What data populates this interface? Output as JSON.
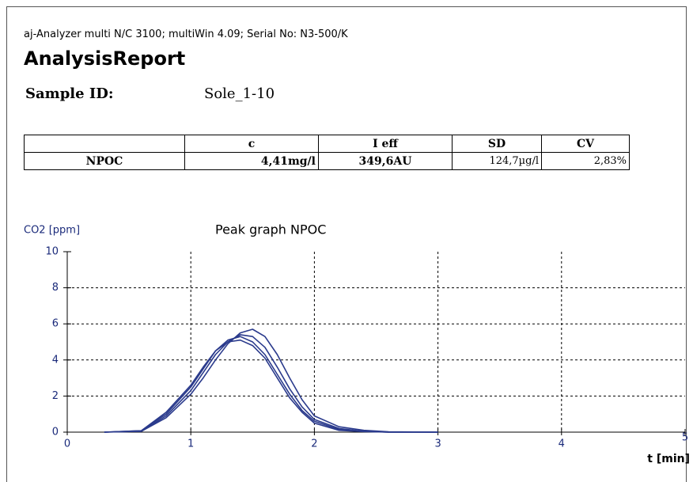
{
  "header": {
    "instrument": "aj-Analyzer multi N/C 3100; multiWin 4.09; Serial No: N3-500/K",
    "title": "AnalysisReport",
    "sample_label": "Sample ID:",
    "sample_value": "Sole_1-10"
  },
  "table": {
    "header": [
      "",
      "c",
      "I eff",
      "SD",
      "CV"
    ],
    "rows": [
      [
        "NPOC",
        "4,41mg/l",
        "349,6AU",
        "124,7µg/l",
        "2,83%"
      ]
    ]
  },
  "chart_data": {
    "type": "line",
    "title": "Peak graph NPOC",
    "ylabel": "CO2 [ppm]",
    "xlabel": "t [min]",
    "x": [
      0.3,
      0.6,
      0.8,
      1.0,
      1.1,
      1.2,
      1.3,
      1.4,
      1.5,
      1.6,
      1.7,
      1.8,
      1.9,
      2.0,
      2.2,
      2.4,
      2.6,
      3.0
    ],
    "series": [
      {
        "color": "#2a3a8c",
        "values": [
          0,
          0.05,
          0.8,
          2.1,
          3.0,
          4.0,
          4.9,
          5.5,
          5.7,
          5.3,
          4.3,
          3.0,
          1.8,
          0.9,
          0.3,
          0.1,
          0.02,
          0
        ]
      },
      {
        "color": "#2a3a8c",
        "values": [
          0,
          0.05,
          0.9,
          2.3,
          3.3,
          4.3,
          5.0,
          5.4,
          5.3,
          4.7,
          3.6,
          2.4,
          1.4,
          0.7,
          0.2,
          0.05,
          0,
          0
        ]
      },
      {
        "color": "#2a3a8c",
        "values": [
          0,
          0.08,
          1.0,
          2.5,
          3.5,
          4.5,
          5.1,
          5.3,
          5.0,
          4.3,
          3.2,
          2.1,
          1.2,
          0.6,
          0.15,
          0.05,
          0,
          0
        ]
      },
      {
        "color": "#2a3a8c",
        "values": [
          0,
          0.08,
          1.1,
          2.6,
          3.6,
          4.5,
          5.0,
          5.1,
          4.8,
          4.1,
          3.0,
          1.9,
          1.1,
          0.5,
          0.1,
          0.03,
          0,
          0
        ]
      }
    ],
    "xlim": [
      0,
      5
    ],
    "xticks": [
      0,
      1,
      2,
      3,
      4,
      5
    ],
    "ylim": [
      0,
      10
    ],
    "yticks": [
      0,
      2,
      4,
      6,
      8,
      10
    ],
    "grid": true
  }
}
